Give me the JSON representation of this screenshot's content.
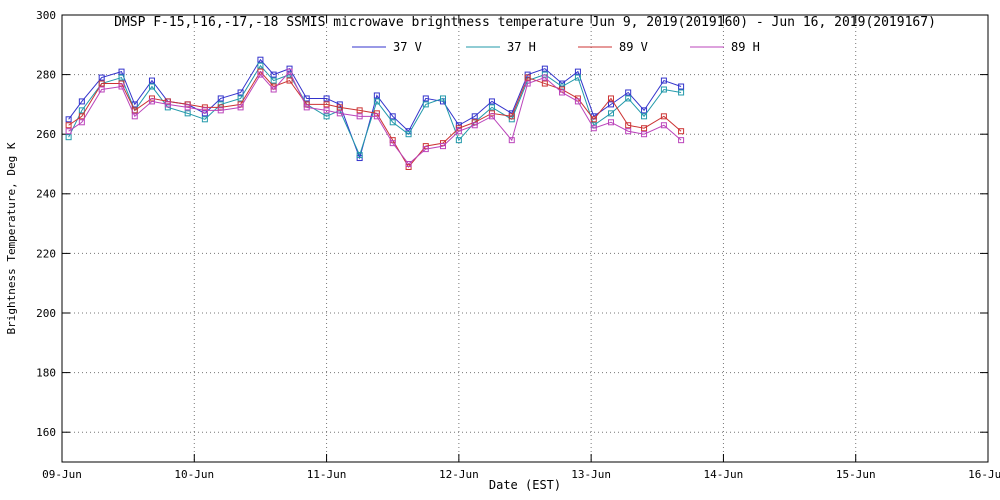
{
  "chart_data": {
    "type": "line",
    "title": "DMSP F-15,-16,-17,-18 SSMIS microwave brightness temperature Jun  9, 2019(2019160) - Jun 16, 2019(2019167)",
    "xlabel": "Date (EST)",
    "ylabel": "Brightness Temperature, Deg K",
    "xlim": [
      0,
      7
    ],
    "ylim": [
      150,
      300
    ],
    "yticks": [
      160,
      180,
      200,
      220,
      240,
      260,
      280,
      300
    ],
    "xtick_days": [
      0,
      1,
      2,
      3,
      4,
      5,
      6,
      7
    ],
    "xtick_labels": [
      "09-Jun",
      "10-Jun",
      "11-Jun",
      "12-Jun",
      "13-Jun",
      "14-Jun",
      "15-Jun",
      "16-Jun"
    ],
    "grid": "dotted",
    "marker": "open-square",
    "legend_position": "top-inside",
    "x_days_since_jun9": [
      0.05,
      0.15,
      0.3,
      0.45,
      0.55,
      0.68,
      0.8,
      0.95,
      1.08,
      1.2,
      1.35,
      1.5,
      1.6,
      1.72,
      1.85,
      2.0,
      2.1,
      2.25,
      2.38,
      2.5,
      2.62,
      2.75,
      2.88,
      3.0,
      3.12,
      3.25,
      3.4,
      3.52,
      3.65,
      3.78,
      3.9,
      4.02,
      4.15,
      4.28,
      4.4,
      4.55,
      4.68
    ],
    "series": [
      {
        "id": "37v",
        "name": "37 V",
        "color": "#3333cc",
        "values": [
          265,
          271,
          279,
          281,
          270,
          278,
          271,
          270,
          267,
          272,
          274,
          285,
          280,
          282,
          272,
          272,
          270,
          252,
          273,
          266,
          261,
          272,
          271,
          263,
          266,
          271,
          267,
          280,
          282,
          277,
          281,
          266,
          270,
          274,
          268,
          278,
          276
        ]
      },
      {
        "id": "37h",
        "name": "37 H",
        "color": "#2299aa",
        "values": [
          259,
          268,
          277,
          279,
          268,
          276,
          269,
          267,
          265,
          270,
          272,
          283,
          278,
          280,
          270,
          266,
          268,
          253,
          271,
          264,
          260,
          270,
          272,
          258,
          264,
          269,
          265,
          278,
          280,
          276,
          279,
          263,
          267,
          272,
          266,
          275,
          274
        ]
      },
      {
        "id": "89v",
        "name": "89 V",
        "color": "#cc3333",
        "values": [
          263,
          266,
          277,
          277,
          268,
          272,
          271,
          270,
          269,
          269,
          270,
          281,
          276,
          278,
          270,
          270,
          269,
          268,
          267,
          258,
          249,
          256,
          257,
          262,
          264,
          267,
          266,
          279,
          277,
          275,
          272,
          265,
          272,
          263,
          262,
          266,
          261
        ]
      },
      {
        "id": "89h",
        "name": "89 H",
        "color": "#bb44bb",
        "values": [
          261,
          264,
          275,
          276,
          266,
          271,
          270,
          269,
          268,
          268,
          269,
          280,
          275,
          281,
          269,
          268,
          267,
          266,
          266,
          257,
          250,
          255,
          256,
          261,
          263,
          266,
          258,
          277,
          279,
          274,
          271,
          262,
          264,
          261,
          260,
          263,
          258
        ]
      }
    ]
  },
  "colors": {
    "axis": "#000000",
    "grid": "#777777",
    "background": "#ffffff"
  }
}
